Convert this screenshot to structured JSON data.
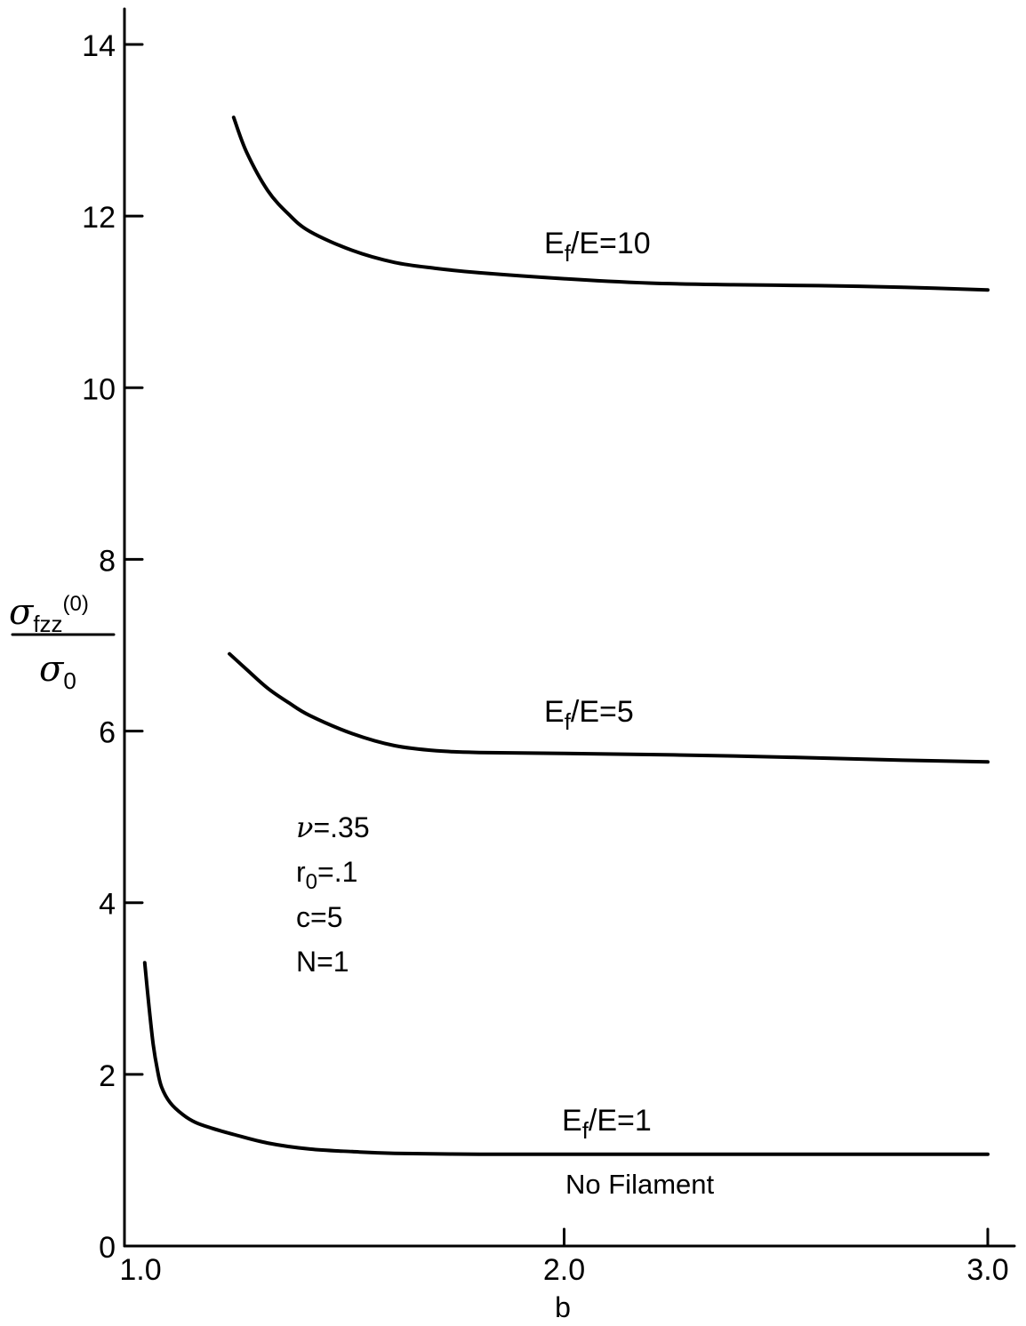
{
  "chart_data": {
    "type": "line",
    "xlabel": "b",
    "ylabel": {
      "numerator_main": "σ",
      "numerator_sub": "fzz",
      "numerator_sup": "(0)",
      "denominator_main": "σ",
      "denominator_sub": "0"
    },
    "xlim": [
      1.0,
      3.0
    ],
    "ylim": [
      0,
      14
    ],
    "x_ticks": [
      {
        "value": 1.0,
        "label": "1.0"
      },
      {
        "value": 2.0,
        "label": "2.0"
      },
      {
        "value": 3.0,
        "label": "3.0"
      }
    ],
    "y_ticks": [
      {
        "value": 0,
        "label": "0"
      },
      {
        "value": 2,
        "label": "2"
      },
      {
        "value": 4,
        "label": "4"
      },
      {
        "value": 6,
        "label": "6"
      },
      {
        "value": 8,
        "label": "8"
      },
      {
        "value": 10,
        "label": "10"
      },
      {
        "value": 12,
        "label": "12"
      },
      {
        "value": 14,
        "label": "14"
      }
    ],
    "grid": false,
    "series": [
      {
        "name": "Ef/E=10",
        "label_main": "E",
        "label_sub": "f",
        "label_rest": "/E=10",
        "x": [
          1.22,
          1.25,
          1.3,
          1.35,
          1.4,
          1.5,
          1.6,
          1.7,
          1.8,
          2.0,
          2.2,
          2.4,
          2.6,
          2.8,
          3.0
        ],
        "y": [
          13.15,
          12.75,
          12.3,
          12.02,
          11.82,
          11.6,
          11.46,
          11.39,
          11.34,
          11.27,
          11.22,
          11.2,
          11.19,
          11.17,
          11.14
        ]
      },
      {
        "name": "Ef/E=5",
        "label_main": "E",
        "label_sub": "f",
        "label_rest": "/E=5",
        "x": [
          1.21,
          1.25,
          1.3,
          1.35,
          1.4,
          1.5,
          1.6,
          1.7,
          1.8,
          2.0,
          2.4,
          2.8,
          3.0
        ],
        "y": [
          6.9,
          6.72,
          6.5,
          6.33,
          6.18,
          5.97,
          5.83,
          5.77,
          5.75,
          5.74,
          5.71,
          5.66,
          5.64
        ]
      },
      {
        "name": "Ef/E=1",
        "label_main": "E",
        "label_sub": "f",
        "label_rest": "/E=1",
        "x": [
          1.01,
          1.02,
          1.03,
          1.04,
          1.05,
          1.07,
          1.1,
          1.13,
          1.17,
          1.22,
          1.3,
          1.4,
          1.5,
          1.6,
          1.8,
          2.0,
          2.5,
          3.0
        ],
        "y": [
          3.3,
          2.8,
          2.35,
          2.05,
          1.85,
          1.67,
          1.53,
          1.44,
          1.37,
          1.3,
          1.2,
          1.13,
          1.1,
          1.08,
          1.07,
          1.07,
          1.07,
          1.07
        ]
      }
    ],
    "annotations": {
      "no_filament": "No Filament",
      "params": {
        "nu": {
          "main": "ν",
          "rest": "=.35"
        },
        "r0": {
          "main": "r",
          "sub": "0",
          "rest": "=.1"
        },
        "c": {
          "text": "c=5"
        },
        "N": {
          "text": "N=1"
        }
      }
    }
  }
}
